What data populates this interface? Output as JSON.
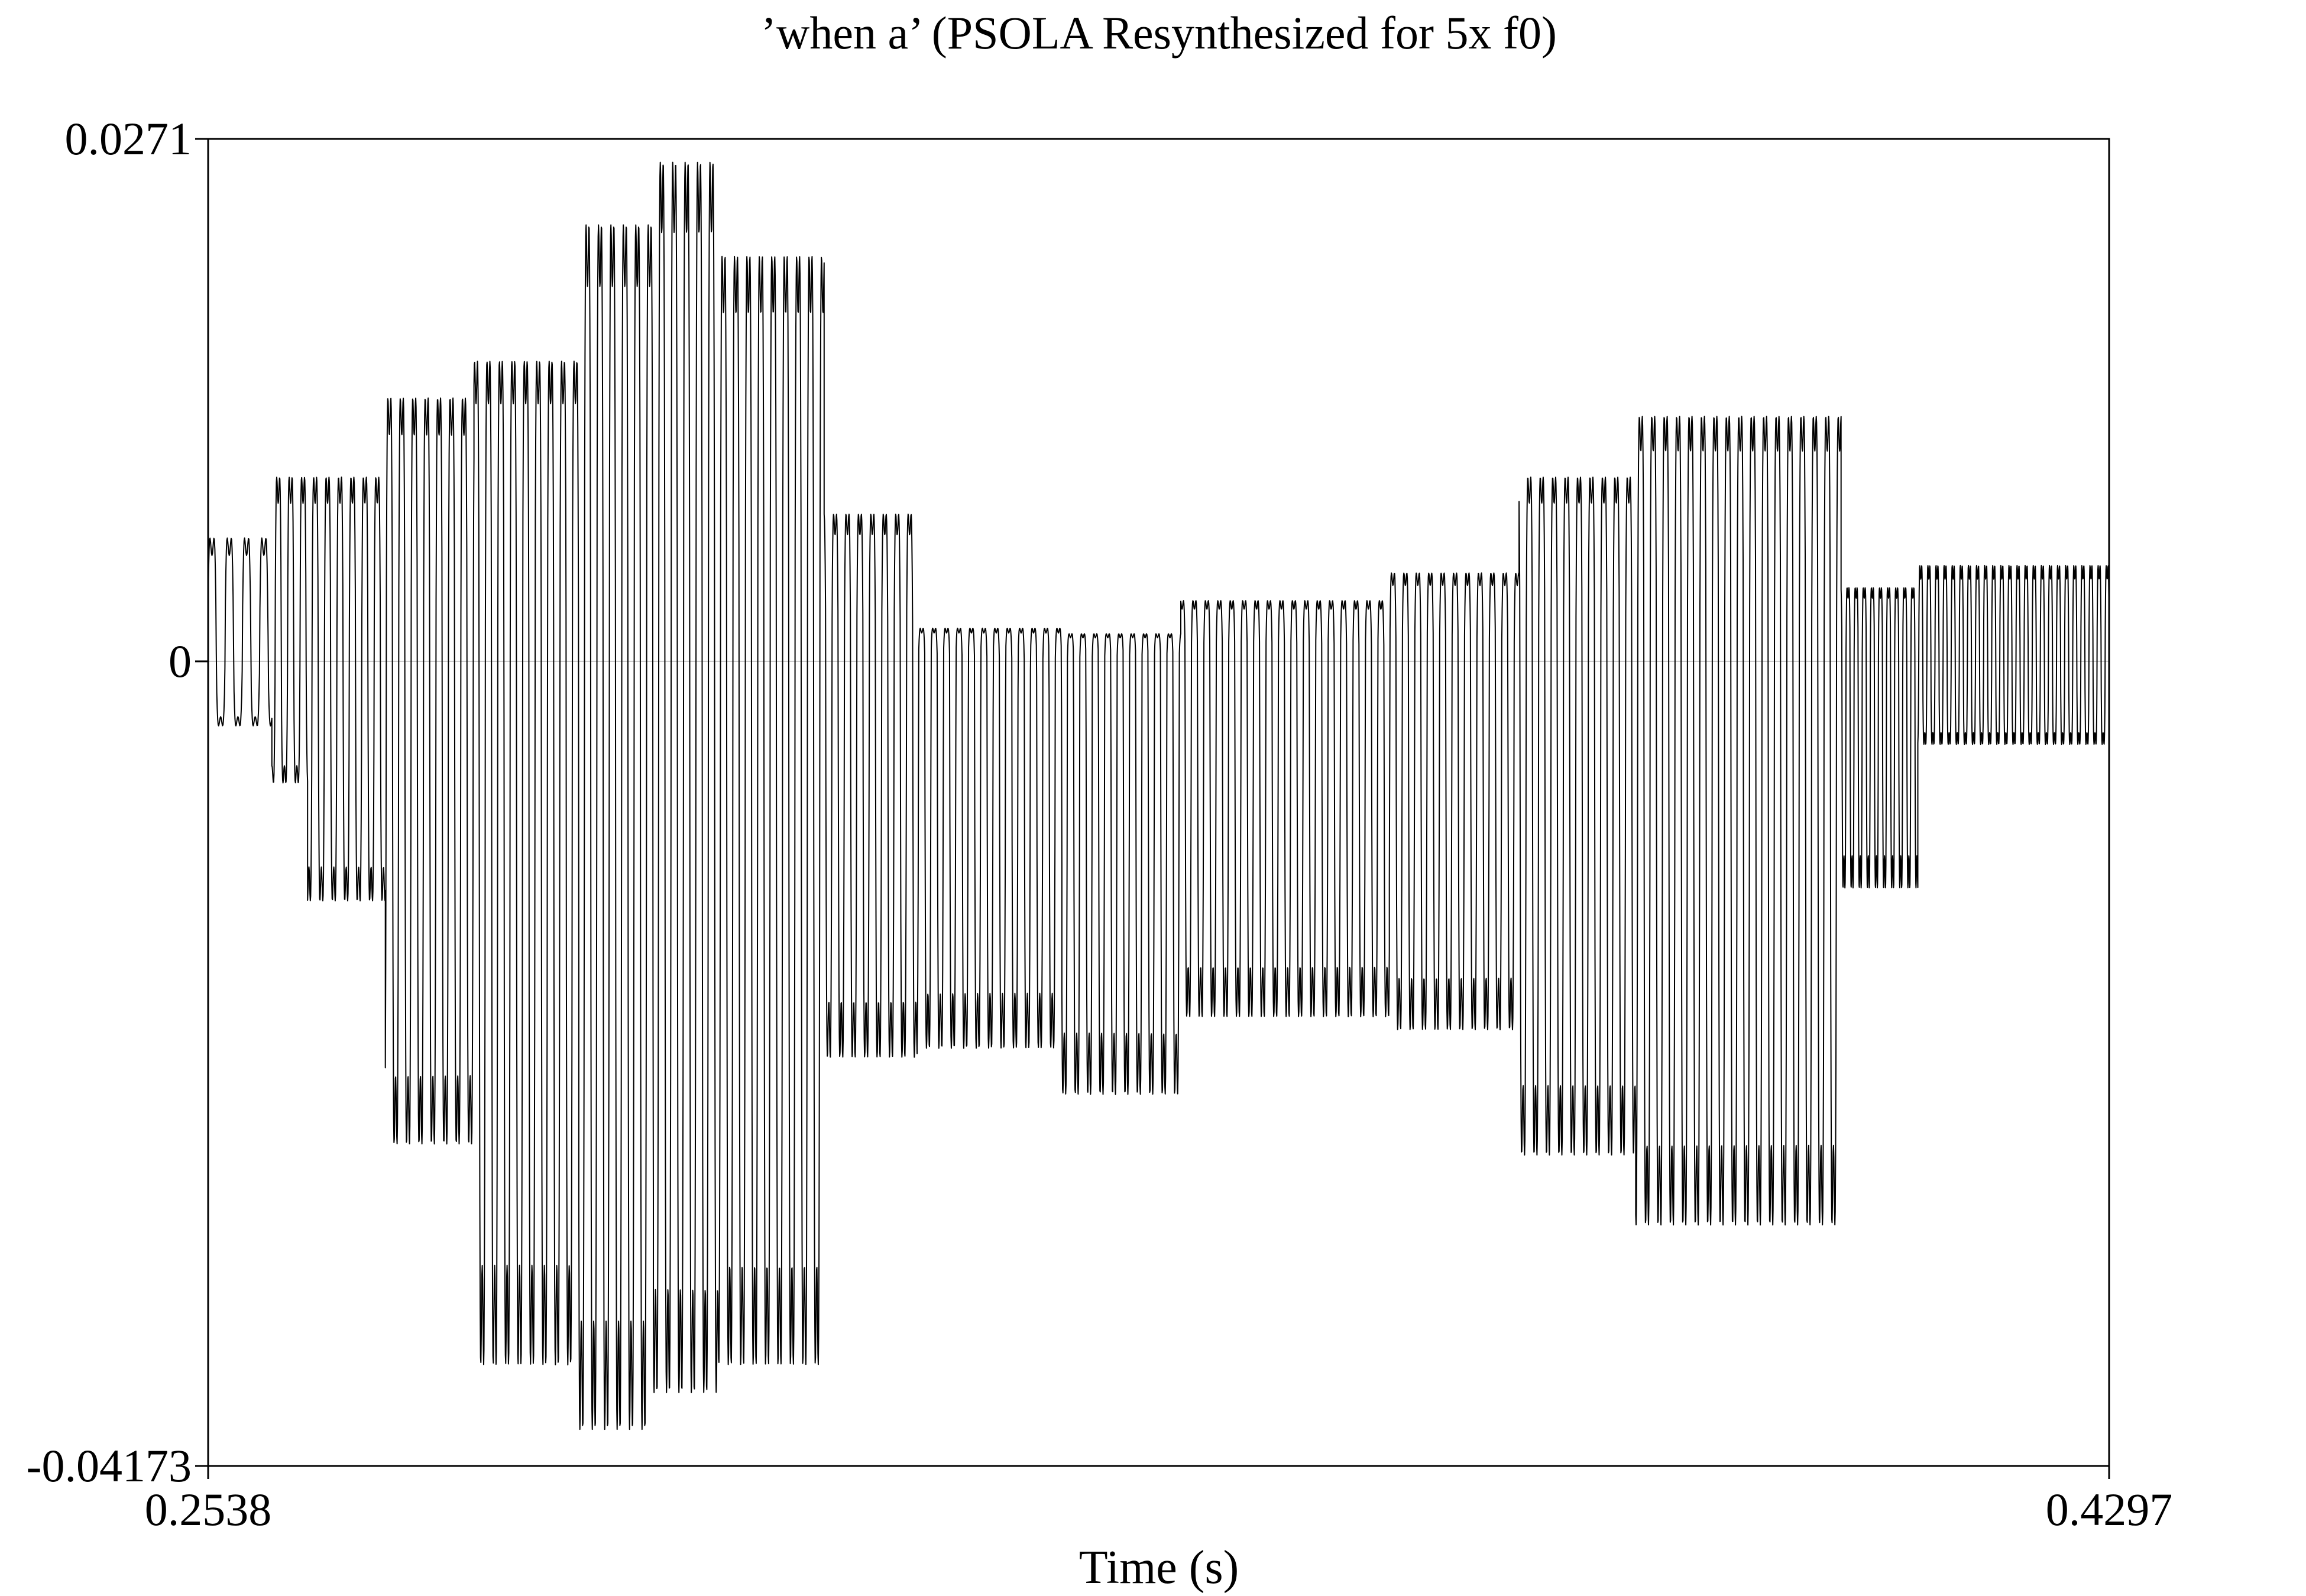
{
  "chart_data": {
    "type": "line",
    "title": "’when a’ (PSOLA Resynthesized for 5x f0)",
    "xlabel": "Time (s)",
    "ylabel": "",
    "xlim": [
      0.2538,
      0.4297
    ],
    "ylim": [
      -0.04173,
      0.0271
    ],
    "x_tick_labels": [
      "0.2538",
      "0.4297"
    ],
    "y_tick_labels": [
      "0.0271",
      "0",
      "-0.04173"
    ],
    "zero_line": true,
    "grid": false,
    "legend": "none",
    "colors": {
      "line": "#000000",
      "zero_line": "#c8c8c8",
      "frame": "#000000"
    },
    "series": [
      {
        "envelope": [
          {
            "t0": 0.2538,
            "t1": 0.2597,
            "max": 0.0067,
            "min": -0.0035
          },
          {
            "t0": 0.2597,
            "t1": 0.263,
            "max": 0.01,
            "min": -0.0066
          },
          {
            "t0": 0.263,
            "t1": 0.2702,
            "max": 0.01,
            "min": -0.013
          },
          {
            "t0": 0.2702,
            "t1": 0.2784,
            "max": 0.0143,
            "min": -0.0262
          },
          {
            "t0": 0.2784,
            "t1": 0.2881,
            "max": 0.0163,
            "min": -0.0382
          },
          {
            "t0": 0.2881,
            "t1": 0.295,
            "max": 0.0237,
            "min": -0.0417
          },
          {
            "t0": 0.295,
            "t1": 0.301,
            "max": 0.0271,
            "min": -0.0397
          },
          {
            "t0": 0.301,
            "t1": 0.3108,
            "max": 0.022,
            "min": -0.0382
          },
          {
            "t0": 0.3108,
            "t1": 0.3194,
            "max": 0.008,
            "min": -0.0215
          },
          {
            "t0": 0.3194,
            "t1": 0.3328,
            "max": 0.0018,
            "min": -0.021
          },
          {
            "t0": 0.3328,
            "t1": 0.3438,
            "max": 0.0015,
            "min": -0.0235
          },
          {
            "t0": 0.3438,
            "t1": 0.3631,
            "max": 0.0033,
            "min": -0.0193
          },
          {
            "t0": 0.3631,
            "t1": 0.3751,
            "max": 0.0048,
            "min": -0.02
          },
          {
            "t0": 0.3751,
            "t1": 0.3859,
            "max": 0.01,
            "min": -0.0268
          },
          {
            "t0": 0.3859,
            "t1": 0.4049,
            "max": 0.0133,
            "min": -0.0306
          },
          {
            "t0": 0.4049,
            "t1": 0.412,
            "max": 0.004,
            "min": -0.0123
          },
          {
            "t0": 0.412,
            "t1": 0.4297,
            "max": 0.0052,
            "min": -0.0045
          }
        ]
      }
    ]
  }
}
